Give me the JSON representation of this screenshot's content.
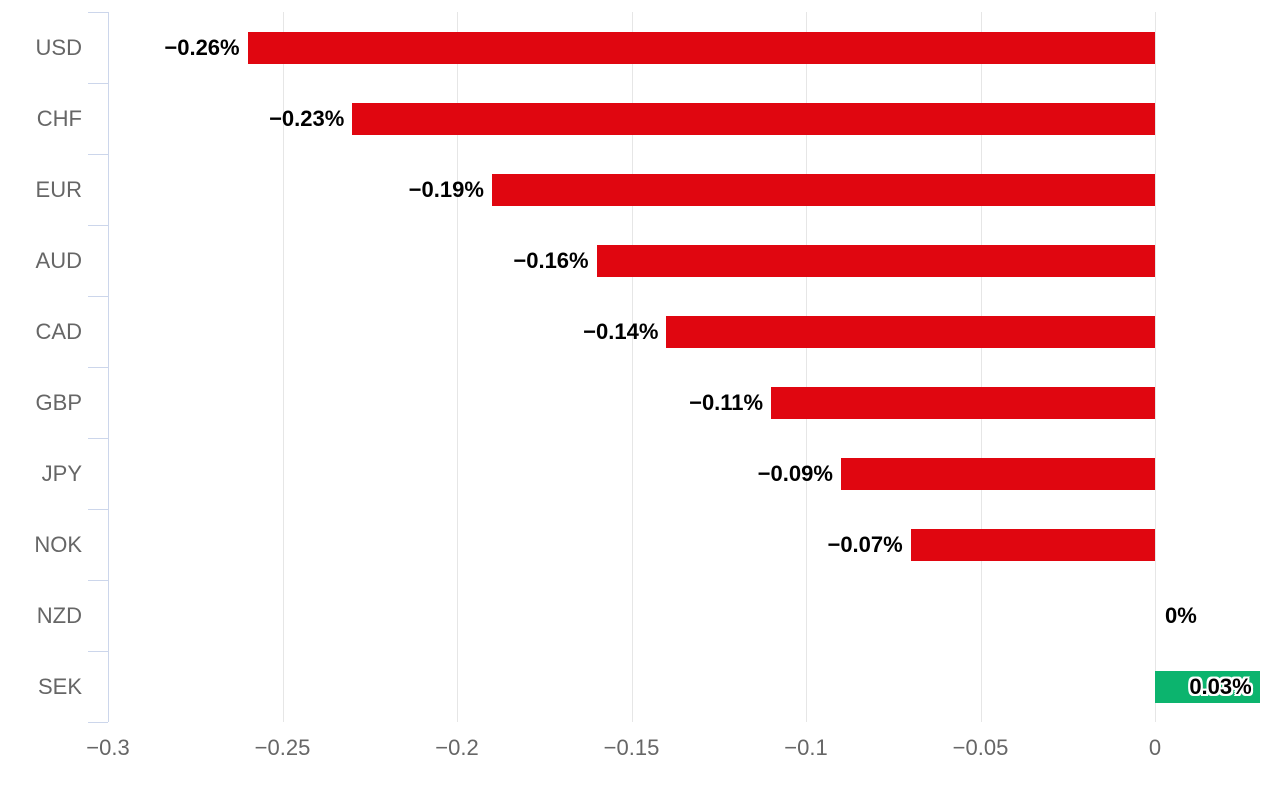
{
  "chart_data": {
    "type": "bar",
    "orientation": "horizontal",
    "title": "",
    "xlabel": "",
    "ylabel": "",
    "legend": "none",
    "grid": true,
    "categories": [
      "USD",
      "CHF",
      "EUR",
      "AUD",
      "CAD",
      "GBP",
      "JPY",
      "NOK",
      "NZD",
      "SEK"
    ],
    "values": [
      -0.26,
      -0.23,
      -0.19,
      -0.16,
      -0.14,
      -0.11,
      -0.09,
      -0.07,
      0,
      0.03
    ],
    "value_labels": [
      "−0.26%",
      "−0.23%",
      "−0.19%",
      "−0.16%",
      "−0.14%",
      "−0.11%",
      "−0.09%",
      "−0.07%",
      "0%",
      "0.03%"
    ],
    "x_ticks": {
      "values": [
        -0.3,
        -0.25,
        -0.2,
        -0.15,
        -0.1,
        -0.05,
        0
      ],
      "labels": [
        "−0.3",
        "−0.25",
        "−0.2",
        "−0.15",
        "−0.1",
        "−0.05",
        "0"
      ]
    },
    "xlim": [
      -0.3,
      0.031
    ],
    "colors": {
      "negative_bar": "#e00610",
      "positive_bar": "#0cb46e",
      "gridline": "#e6e6e6",
      "axis": "#ccd6eb",
      "axis_label_text": "#666666",
      "value_label_text": "#000000"
    }
  }
}
